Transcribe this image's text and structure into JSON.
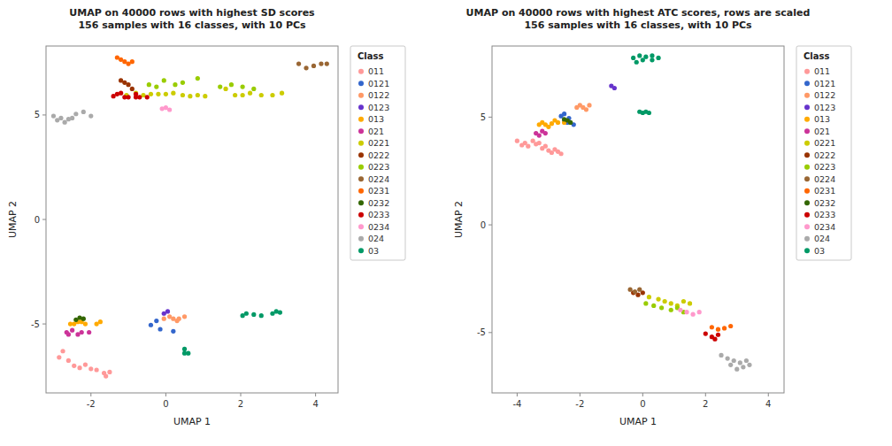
{
  "chart_data": [
    {
      "type": "scatter",
      "title": "UMAP on 40000 rows with highest SD scores\n156 samples with 16 classes, with 10 PCs",
      "xlabel": "UMAP 1",
      "ylabel": "UMAP 2",
      "xlim": [
        -3.2,
        4.6
      ],
      "ylim": [
        -8.3,
        8.3
      ],
      "xticks": [
        -2,
        0,
        2,
        4
      ],
      "yticks": [
        -5,
        0,
        5
      ],
      "grid": false,
      "legend": "right",
      "legend_title": "Class",
      "series": [
        {
          "name": "011",
          "color": "#FF9999",
          "x": [
            -2.75,
            -2.85,
            -2.6,
            -2.45,
            -2.3,
            -2.15,
            -2.0,
            -1.85,
            -1.65,
            -1.6,
            -1.5
          ],
          "values": [
            -6.3,
            -6.6,
            -6.75,
            -7.0,
            -7.1,
            -6.95,
            -7.15,
            -7.2,
            -7.35,
            -7.5,
            -7.3
          ]
        },
        {
          "name": "0121",
          "color": "#3366CC",
          "x": [
            -0.25,
            -0.4,
            -0.15,
            0.2
          ],
          "values": [
            -4.85,
            -5.05,
            -5.25,
            -5.35
          ]
        },
        {
          "name": "0122",
          "color": "#FF9966",
          "x": [
            -0.05,
            0.1,
            0.2,
            0.35,
            0.5,
            0.3
          ],
          "values": [
            -4.75,
            -4.65,
            -4.75,
            -4.75,
            -4.65,
            -4.85
          ]
        },
        {
          "name": "0123",
          "color": "#6633CC",
          "x": [
            -0.05,
            0.05
          ],
          "values": [
            -4.5,
            -4.4
          ]
        },
        {
          "name": "013",
          "color": "#FFAA00",
          "x": [
            -2.55,
            -2.45,
            -2.35,
            -2.25,
            -2.15,
            -1.75,
            -1.85
          ],
          "values": [
            -5.0,
            -5.0,
            -4.9,
            -4.9,
            -5.0,
            -4.9,
            -5.0
          ]
        },
        {
          "name": "021",
          "color": "#CC3399",
          "x": [
            -2.65,
            -2.6,
            -2.5,
            -2.35,
            -2.25,
            -2.05
          ],
          "values": [
            -5.4,
            -5.5,
            -5.3,
            -5.5,
            -5.4,
            -5.4
          ]
        },
        {
          "name": "0221",
          "color": "#CCCC00",
          "x": [
            -1.05,
            -0.8,
            -0.6,
            -0.4,
            -0.2,
            0.0,
            0.2,
            0.45,
            0.65,
            0.85,
            1.05,
            1.6,
            1.85,
            2.05,
            2.25,
            2.55,
            2.85,
            3.1
          ],
          "values": [
            5.95,
            6.05,
            5.95,
            6.0,
            6.0,
            6.0,
            6.05,
            5.95,
            5.9,
            5.95,
            5.9,
            6.25,
            5.95,
            5.95,
            6.05,
            5.95,
            5.95,
            6.05
          ]
        },
        {
          "name": "0222",
          "color": "#993300",
          "x": [
            -0.9,
            -1.0,
            -1.1,
            -1.2
          ],
          "values": [
            6.25,
            6.45,
            6.55,
            6.65
          ]
        },
        {
          "name": "0223",
          "color": "#99CC00",
          "x": [
            -0.45,
            -0.25,
            -0.05,
            0.25,
            0.45,
            0.85,
            1.45,
            1.75,
            2.05,
            2.35
          ],
          "values": [
            6.45,
            6.35,
            6.65,
            6.45,
            6.55,
            6.75,
            6.35,
            6.45,
            6.35,
            6.25
          ]
        },
        {
          "name": "0224",
          "color": "#996633",
          "x": [
            3.55,
            3.75,
            3.95,
            4.15,
            4.3
          ],
          "values": [
            7.45,
            7.25,
            7.35,
            7.45,
            7.45
          ]
        },
        {
          "name": "0231",
          "color": "#FF6600",
          "x": [
            -1.1,
            -1.2,
            -1.3,
            -1.0,
            -0.9
          ],
          "values": [
            7.55,
            7.65,
            7.75,
            7.45,
            7.55
          ]
        },
        {
          "name": "0232",
          "color": "#336600",
          "x": [
            -2.4,
            -2.3,
            -2.2
          ],
          "values": [
            -4.8,
            -4.7,
            -4.75
          ]
        },
        {
          "name": "0233",
          "color": "#CC0000",
          "x": [
            -1.3,
            -1.2,
            -1.4,
            -1.1,
            -1.0,
            -0.8,
            -0.8,
            -0.7,
            -0.5
          ],
          "values": [
            6.0,
            6.05,
            5.9,
            5.85,
            5.85,
            6.0,
            5.85,
            5.85,
            5.85
          ]
        },
        {
          "name": "0234",
          "color": "#FF99CC",
          "x": [
            0.0,
            0.1,
            -0.1
          ],
          "values": [
            5.35,
            5.25,
            5.3
          ]
        },
        {
          "name": "024",
          "color": "#AAAAAA",
          "x": [
            -3.0,
            -2.9,
            -2.8,
            -2.7,
            -2.6,
            -2.5,
            -2.4,
            -2.2,
            -2.0
          ],
          "values": [
            4.95,
            4.75,
            4.85,
            4.65,
            4.8,
            4.85,
            5.05,
            5.15,
            4.95
          ]
        },
        {
          "name": "03",
          "color": "#009966",
          "x": [
            2.05,
            2.15,
            2.35,
            2.55,
            2.85,
            2.95,
            3.05,
            0.5,
            0.6,
            0.5
          ],
          "values": [
            -4.6,
            -4.5,
            -4.55,
            -4.6,
            -4.5,
            -4.4,
            -4.45,
            -6.4,
            -6.4,
            -6.2
          ]
        }
      ]
    },
    {
      "type": "scatter",
      "title": "UMAP on 40000 rows with highest ATC scores, rows are scaled\n156 samples with 16 classes, with 10 PCs",
      "xlabel": "UMAP 1",
      "ylabel": "UMAP 2",
      "xlim": [
        -4.8,
        4.5
      ],
      "ylim": [
        -7.8,
        8.3
      ],
      "xticks": [
        -4,
        -2,
        0,
        2,
        4
      ],
      "yticks": [
        -5,
        0,
        5
      ],
      "grid": false,
      "legend": "right",
      "legend_title": "Class",
      "series": [
        {
          "name": "011",
          "color": "#FF9999",
          "x": [
            -4.0,
            -3.85,
            -3.75,
            -3.65,
            -3.5,
            -3.4,
            -3.3,
            -3.2,
            -3.1,
            -3.0,
            -2.9,
            -2.8,
            -2.7,
            -2.6
          ],
          "values": [
            3.9,
            3.7,
            3.8,
            3.65,
            3.9,
            3.75,
            3.8,
            3.55,
            3.65,
            3.45,
            3.35,
            3.5,
            3.4,
            3.3
          ]
        },
        {
          "name": "0121",
          "color": "#3366CC",
          "x": [
            -2.5,
            -2.4,
            -2.35,
            -2.5,
            -2.6,
            -2.2
          ],
          "values": [
            4.85,
            4.75,
            4.95,
            5.15,
            5.05,
            4.65
          ]
        },
        {
          "name": "0122",
          "color": "#FF9966",
          "x": [
            -2.1,
            -2.0,
            -1.9,
            -1.8,
            -1.7
          ],
          "values": [
            5.45,
            5.55,
            5.45,
            5.35,
            5.55
          ]
        },
        {
          "name": "0123",
          "color": "#6633CC",
          "x": [
            -1.0,
            -0.9
          ],
          "values": [
            6.45,
            6.35
          ]
        },
        {
          "name": "013",
          "color": "#FFAA00",
          "x": [
            -3.3,
            -3.2,
            -3.1,
            -3.0,
            -2.9,
            -2.8,
            -2.7,
            -2.5
          ],
          "values": [
            4.65,
            4.75,
            4.65,
            4.55,
            4.7,
            4.85,
            4.75,
            4.75
          ]
        },
        {
          "name": "021",
          "color": "#CC3399",
          "x": [
            -3.4,
            -3.3,
            -3.2,
            -3.1
          ],
          "values": [
            4.25,
            4.15,
            4.35,
            4.25
          ]
        },
        {
          "name": "0221",
          "color": "#CCCC00",
          "x": [
            0.2,
            0.5,
            0.7,
            0.9,
            1.1,
            1.3,
            1.5
          ],
          "values": [
            -3.35,
            -3.45,
            -3.55,
            -3.65,
            -3.75,
            -3.55,
            -3.65
          ]
        },
        {
          "name": "0222",
          "color": "#993300",
          "x": [
            -0.3,
            -0.15,
            0.0
          ],
          "values": [
            -3.15,
            -3.25,
            -3.15
          ]
        },
        {
          "name": "0223",
          "color": "#99CC00",
          "x": [
            0.1,
            0.35,
            0.6,
            0.9,
            1.1,
            1.3
          ],
          "values": [
            -3.65,
            -3.75,
            -3.85,
            -3.95,
            -3.85,
            -4.05
          ]
        },
        {
          "name": "0224",
          "color": "#996633",
          "x": [
            -0.4,
            -0.25,
            -0.1
          ],
          "values": [
            -3.0,
            -3.1,
            -3.0
          ]
        },
        {
          "name": "0231",
          "color": "#FF6600",
          "x": [
            2.2,
            2.4,
            2.6,
            2.8
          ],
          "values": [
            -4.75,
            -4.85,
            -4.8,
            -4.7
          ]
        },
        {
          "name": "0232",
          "color": "#336600",
          "x": [
            -2.5,
            -2.4,
            -2.3
          ],
          "values": [
            4.9,
            4.85,
            4.75
          ]
        },
        {
          "name": "0233",
          "color": "#CC0000",
          "x": [
            2.0,
            2.2,
            2.4,
            2.3
          ],
          "values": [
            -5.05,
            -5.2,
            -5.1,
            -5.3
          ]
        },
        {
          "name": "0234",
          "color": "#FF99CC",
          "x": [
            1.2,
            1.4,
            1.6,
            1.8
          ],
          "values": [
            -3.95,
            -4.05,
            -4.15,
            -4.05
          ]
        },
        {
          "name": "024",
          "color": "#AAAAAA",
          "x": [
            2.5,
            2.7,
            2.9,
            3.1,
            3.3,
            3.4,
            3.2,
            3.0,
            2.8
          ],
          "values": [
            -6.05,
            -6.2,
            -6.3,
            -6.4,
            -6.3,
            -6.5,
            -6.6,
            -6.7,
            -6.5
          ]
        },
        {
          "name": "03",
          "color": "#009966",
          "x": [
            -0.3,
            -0.1,
            0.1,
            0.3,
            0.5,
            0.3,
            0.0,
            -0.2,
            -0.1,
            0.0,
            0.1,
            0.2
          ],
          "values": [
            7.75,
            7.85,
            7.8,
            7.85,
            7.75,
            7.65,
            7.65,
            7.55,
            5.25,
            5.2,
            5.25,
            5.2
          ]
        }
      ]
    }
  ]
}
